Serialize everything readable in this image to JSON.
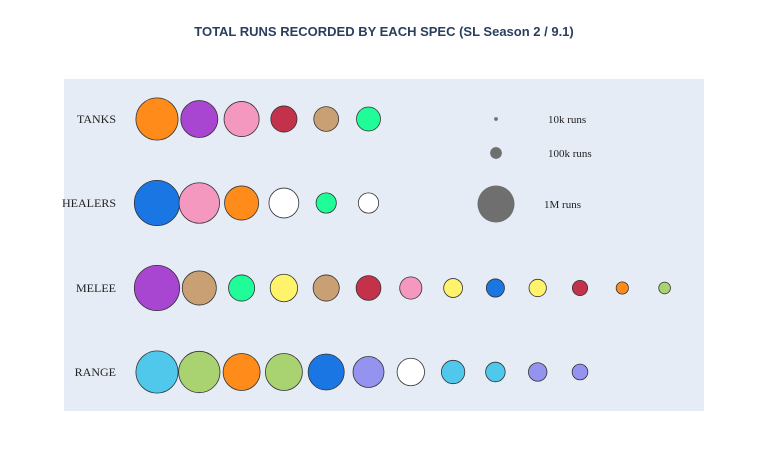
{
  "chart_data": {
    "type": "scatter",
    "title": "TOTAL RUNS RECORDED BY EACH SPEC (SL Season 2 / 9.1)",
    "categories": [
      "TANKS",
      "HEALERS",
      "MELEE",
      "RANGE"
    ],
    "series": [
      {
        "category": "TANKS",
        "points": [
          {
            "color": "#ff8c1a",
            "runs": 1300000
          },
          {
            "color": "#a845d1",
            "runs": 1000000
          },
          {
            "color": "#f598c0",
            "runs": 900000
          },
          {
            "color": "#c4314a",
            "runs": 500000
          },
          {
            "color": "#c9a074",
            "runs": 450000
          },
          {
            "color": "#1ffc98",
            "runs": 420000
          }
        ]
      },
      {
        "category": "HEALERS",
        "points": [
          {
            "color": "#1976e3",
            "runs": 1500000
          },
          {
            "color": "#f598c0",
            "runs": 1200000
          },
          {
            "color": "#ff8c1a",
            "runs": 850000
          },
          {
            "color": "#ffffff",
            "runs": 650000
          },
          {
            "color": "#1ffc98",
            "runs": 300000
          },
          {
            "color": "#ffffff",
            "runs": 300000
          }
        ]
      },
      {
        "category": "MELEE",
        "points": [
          {
            "color": "#a845d1",
            "runs": 1500000
          },
          {
            "color": "#c9a074",
            "runs": 850000
          },
          {
            "color": "#1ffc98",
            "runs": 500000
          },
          {
            "color": "#fff36b",
            "runs": 550000
          },
          {
            "color": "#c9a074",
            "runs": 500000
          },
          {
            "color": "#c4314a",
            "runs": 450000
          },
          {
            "color": "#f598c0",
            "runs": 360000
          },
          {
            "color": "#fff36b",
            "runs": 260000
          },
          {
            "color": "#1976e3",
            "runs": 240000
          },
          {
            "color": "#fff36b",
            "runs": 220000
          },
          {
            "color": "#c4314a",
            "runs": 170000
          },
          {
            "color": "#ff8c1a",
            "runs": 110000
          },
          {
            "color": "#a9d271",
            "runs": 100000
          }
        ]
      },
      {
        "category": "RANGE",
        "points": [
          {
            "color": "#4fc8eb",
            "runs": 1300000
          },
          {
            "color": "#a9d271",
            "runs": 1250000
          },
          {
            "color": "#ff8c1a",
            "runs": 1000000
          },
          {
            "color": "#a9d271",
            "runs": 1000000
          },
          {
            "color": "#1976e3",
            "runs": 950000
          },
          {
            "color": "#9494f0",
            "runs": 700000
          },
          {
            "color": "#ffffff",
            "runs": 550000
          },
          {
            "color": "#4fc8eb",
            "runs": 400000
          },
          {
            "color": "#4fc8eb",
            "runs": 280000
          },
          {
            "color": "#9494f0",
            "runs": 250000
          },
          {
            "color": "#9494f0",
            "runs": 180000
          }
        ]
      }
    ],
    "size_legend": [
      {
        "label": "10k runs",
        "runs": 10000
      },
      {
        "label": "100k runs",
        "runs": 100000
      },
      {
        "label": "1M runs",
        "runs": 1000000
      }
    ],
    "legend_color": "#6f6f6f",
    "plot_background": "#e5ecf6",
    "legend_placement": "top-right"
  }
}
